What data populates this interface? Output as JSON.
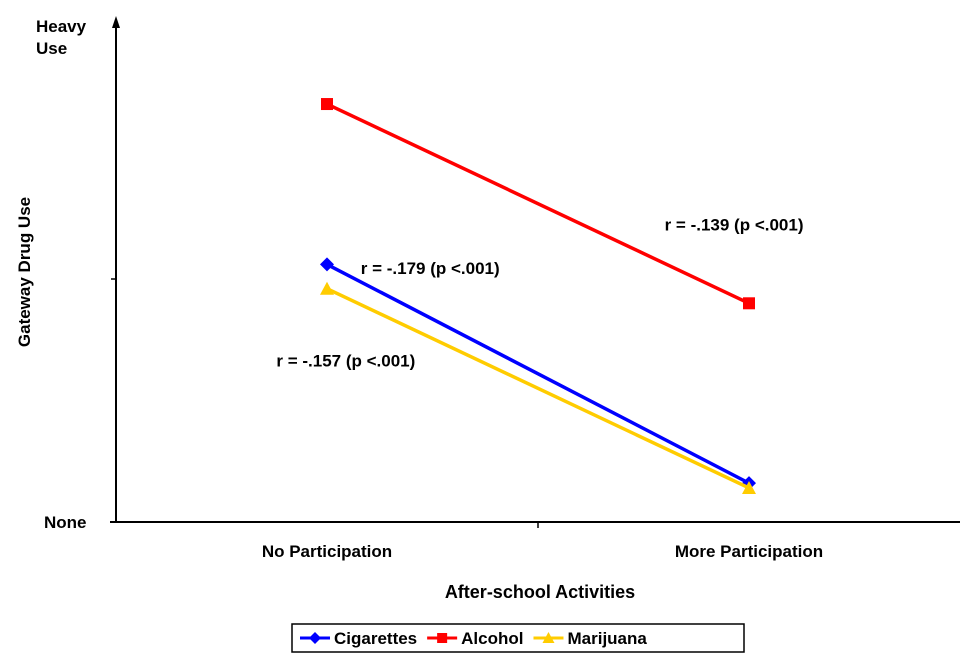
{
  "chart_data": {
    "type": "line",
    "title": "",
    "xlabel": "After-school Activities",
    "ylabel": "Gateway Drug Use",
    "categories": [
      "No Participation",
      "More Participation"
    ],
    "y_tick_labels": {
      "top": "Heavy Use",
      "bottom": "None"
    },
    "ylim": [
      0,
      1
    ],
    "grid": false,
    "legend_position": "bottom",
    "series": [
      {
        "name": "Cigarettes",
        "values": [
          0.53,
          0.08
        ],
        "color": "#0000FF",
        "marker": "diamond",
        "annotation": "r = -.179 (p <.001)",
        "annotation_anchor": {
          "x": 0.08,
          "y": 0.51
        }
      },
      {
        "name": "Alcohol",
        "values": [
          0.86,
          0.45
        ],
        "color": "#FF0000",
        "marker": "square",
        "annotation": "r = -.139 (p <.001)",
        "annotation_anchor": {
          "x": 0.8,
          "y": 0.6
        }
      },
      {
        "name": "Marijuana",
        "values": [
          0.48,
          0.07
        ],
        "color": "#FFCC00",
        "marker": "triangle",
        "annotation": "r = -.157 (p <.001)",
        "annotation_anchor": {
          "x": -0.12,
          "y": 0.32
        }
      }
    ]
  }
}
